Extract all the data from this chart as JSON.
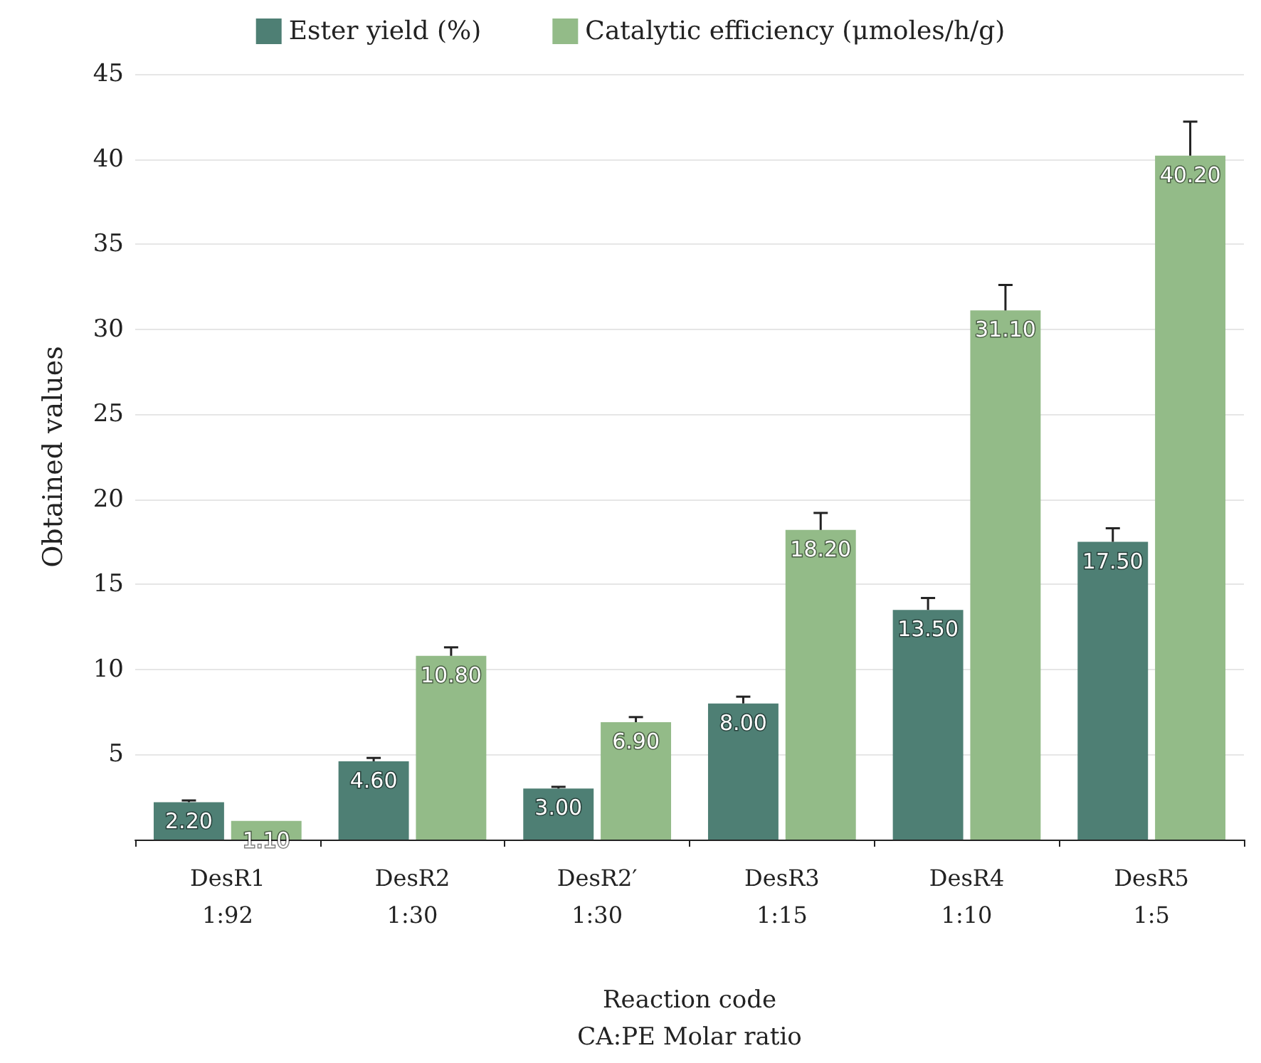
{
  "chart_data": {
    "type": "bar",
    "xlabel": "Reaction code\nCA:PE Molar ratio",
    "ylabel": "Obtained values",
    "categories": [
      "DesR1\n1:92",
      "DesR2\n1:30",
      "DesR2′\n1:30",
      "DesR3\n1:15",
      "DesR4\n1:10",
      "DesR5\n1:5"
    ],
    "series": [
      {
        "name": "Ester yield (%)",
        "color": "#4e7f74",
        "values": [
          2.2,
          4.6,
          3.0,
          8.0,
          13.5,
          17.5
        ],
        "errors": [
          0.1,
          0.2,
          0.1,
          0.4,
          0.7,
          0.8
        ],
        "value_labels": [
          "2.20",
          "4.60",
          "3.00",
          "8.00",
          "13.50",
          "17.50"
        ]
      },
      {
        "name": "Catalytic efficiency (μmoles/h/g)",
        "color": "#93bb88",
        "values": [
          1.1,
          10.8,
          6.9,
          18.2,
          31.1,
          40.2
        ],
        "errors": [
          null,
          0.5,
          0.3,
          1.0,
          1.5,
          2.0
        ],
        "value_labels": [
          "1.10",
          "10.80",
          "6.90",
          "18.20",
          "31.10",
          "40.20"
        ]
      }
    ],
    "ylim": [
      0,
      45
    ],
    "yticks": [
      {
        "value": 0,
        "label": null
      },
      5,
      10,
      15,
      20,
      25,
      30,
      35,
      40,
      45
    ],
    "grid": "y",
    "legend": "top"
  }
}
